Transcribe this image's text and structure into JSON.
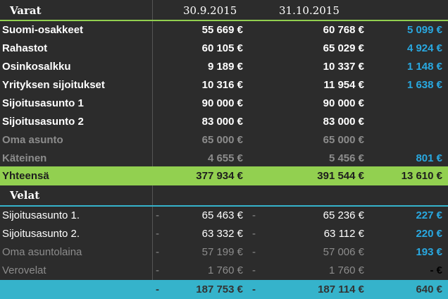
{
  "assets": {
    "title": "Varat",
    "date1": "30.9.2015",
    "date2": "31.10.2015",
    "rows": [
      {
        "label": "Suomi-osakkeet",
        "v1": "55 669 €",
        "v2": "60 768 €",
        "diff": "5 099 €"
      },
      {
        "label": "Rahastot",
        "v1": "60 105 €",
        "v2": "65 029 €",
        "diff": "4 924 €"
      },
      {
        "label": "Osinkosalkku",
        "v1": "9 189 €",
        "v2": "10 337 €",
        "diff": "1 148 €"
      },
      {
        "label": "Yrityksen sijoitukset",
        "v1": "10 316 €",
        "v2": "11 954 €",
        "diff": "1 638 €"
      },
      {
        "label": "Sijoitusasunto 1",
        "v1": "90 000 €",
        "v2": "90 000 €",
        "diff": ""
      },
      {
        "label": "Sijoitusasunto 2",
        "v1": "83 000 €",
        "v2": "83 000 €",
        "diff": ""
      },
      {
        "label": "Oma asunto",
        "v1": "65 000 €",
        "v2": "65 000 €",
        "diff": ""
      },
      {
        "label": "Käteinen",
        "v1": "4 655 €",
        "v2": "5 456 €",
        "diff": "801 €"
      }
    ],
    "total": {
      "label": "Yhteensä",
      "v1": "377 934 €",
      "v2": "391 544 €",
      "diff": "13 610 €"
    }
  },
  "liabilities": {
    "title": "Velat",
    "rows": [
      {
        "label": "Sijoitusasunto 1.",
        "v1": "65 463 €",
        "v2": "65 236 €",
        "diff": "227 €"
      },
      {
        "label": "Sijoitusasunto 2.",
        "v1": "63 332 €",
        "v2": "63 112 €",
        "diff": "220 €"
      },
      {
        "label": "Oma asuntolaina",
        "v1": "57 199 €",
        "v2": "57 006 €",
        "diff": "193 €"
      },
      {
        "label": "Verovelat",
        "v1": "1 760 €",
        "v2": "1 760 €",
        "diff": "-   €"
      }
    ],
    "sign": "-",
    "total": {
      "v1": "187 753 €",
      "v2": "187 114 €",
      "diff": "640 €"
    }
  },
  "colors": {
    "green": "#92d050",
    "cyan": "#35b3cb",
    "diff_blue": "#29a8e0"
  }
}
